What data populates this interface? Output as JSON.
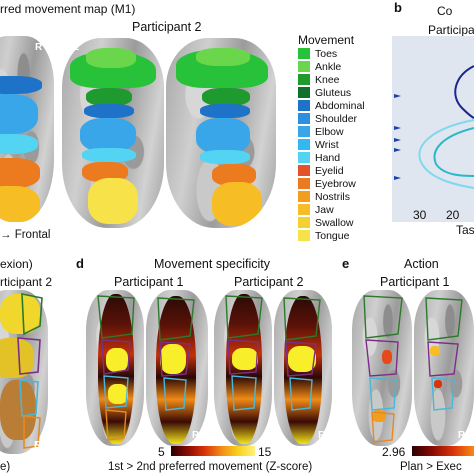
{
  "panel_a": {
    "title": "rred movement map (M1)",
    "participant": "Participant 2",
    "hemisphere_left": "L",
    "hemisphere_right": "R",
    "orientation": "→ Frontal",
    "legend_title": "Movement",
    "legend": [
      {
        "label": "Toes",
        "color": "#28c23a"
      },
      {
        "label": "Ankle",
        "color": "#6ad64c"
      },
      {
        "label": "Knee",
        "color": "#1f9a2e"
      },
      {
        "label": "Gluteus",
        "color": "#0f6f2c"
      },
      {
        "label": "Abdominal",
        "color": "#1e73c8"
      },
      {
        "label": "Shoulder",
        "color": "#2e8fe0"
      },
      {
        "label": "Elbow",
        "color": "#3aa6ea"
      },
      {
        "label": "Wrist",
        "color": "#35b8ef"
      },
      {
        "label": "Hand",
        "color": "#52d4f2"
      },
      {
        "label": "Eyelid",
        "color": "#e3522b"
      },
      {
        "label": "Eyebrow",
        "color": "#ec7a1f"
      },
      {
        "label": "Nostrils",
        "color": "#f29d20"
      },
      {
        "label": "Jaw",
        "color": "#f6bd25"
      },
      {
        "label": "Swallow",
        "color": "#f5d033"
      },
      {
        "label": "Tongue",
        "color": "#f7e24a"
      }
    ]
  },
  "panel_b": {
    "letter": "b",
    "title": "Co",
    "participant": "Participa",
    "x_ticks": [
      "30",
      "20"
    ],
    "x_label": "Tas"
  },
  "panel_c": {
    "title": "exion)",
    "participant": "rticipant 2",
    "hemisphere_right": "R",
    "footer": "e)"
  },
  "panel_d": {
    "letter": "d",
    "title": "Movement specificity",
    "participant_1": "Participant 1",
    "participant_2": "Participant 2",
    "hemisphere_left": "L",
    "hemisphere_right": "R",
    "colorbar_min": "5",
    "colorbar_max": "15",
    "colorbar_label": "1st > 2nd preferred movement (Z-score)"
  },
  "panel_e": {
    "letter": "e",
    "title": "Action",
    "participant": "Participant 1",
    "hemisphere_left": "L",
    "hemisphere_right": "R",
    "colorbar_min": "2.96",
    "colorbar_label": "Plan > Exec"
  }
}
